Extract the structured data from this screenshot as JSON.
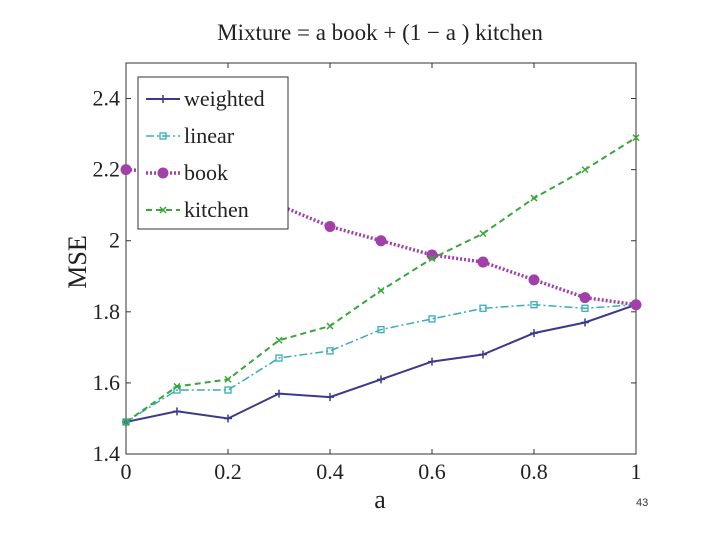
{
  "page_number": "43",
  "chart_data": {
    "type": "line",
    "title": "Mixture = a  book + (1 −  a ) kitchen",
    "xlabel": "a",
    "ylabel": "MSE",
    "xlim": [
      0,
      1
    ],
    "ylim": [
      1.4,
      2.5
    ],
    "x_ticks": [
      0,
      0.2,
      0.4,
      0.6,
      0.8,
      1
    ],
    "x_tick_labels": [
      "0",
      "0.2",
      "0.4",
      "0.6",
      "0.8",
      "1"
    ],
    "y_ticks": [
      1.4,
      1.6,
      1.8,
      2.0,
      2.2,
      2.4
    ],
    "y_tick_labels": [
      "1.4",
      "1.6",
      "1.8",
      "2",
      "2.2",
      "2.4"
    ],
    "grid": false,
    "legend_position": "top-left",
    "x": [
      0,
      0.1,
      0.2,
      0.3,
      0.4,
      0.5,
      0.6,
      0.7,
      0.8,
      0.9,
      1.0
    ],
    "series": [
      {
        "name": "weighted",
        "color": "#3a3a8c",
        "dash": "solid",
        "marker": "plus",
        "values": [
          1.49,
          1.52,
          1.5,
          1.57,
          1.56,
          1.61,
          1.66,
          1.68,
          1.74,
          1.77,
          1.82
        ]
      },
      {
        "name": "linear",
        "color": "#3aacb8",
        "dash": "dashdot",
        "marker": "square",
        "values": [
          1.49,
          1.58,
          1.58,
          1.67,
          1.69,
          1.75,
          1.78,
          1.81,
          1.82,
          1.81,
          1.82
        ]
      },
      {
        "name": "book",
        "color": "#a040a8",
        "dash": "dotted",
        "marker": "circle",
        "values": [
          2.2,
          2.19,
          2.16,
          2.1,
          2.04,
          2.0,
          1.96,
          1.94,
          1.89,
          1.84,
          1.82
        ]
      },
      {
        "name": "kitchen",
        "color": "#3aa63a",
        "dash": "dashed",
        "marker": "x",
        "values": [
          1.49,
          1.59,
          1.61,
          1.72,
          1.76,
          1.86,
          1.95,
          2.02,
          2.12,
          2.2,
          2.29
        ]
      }
    ]
  }
}
